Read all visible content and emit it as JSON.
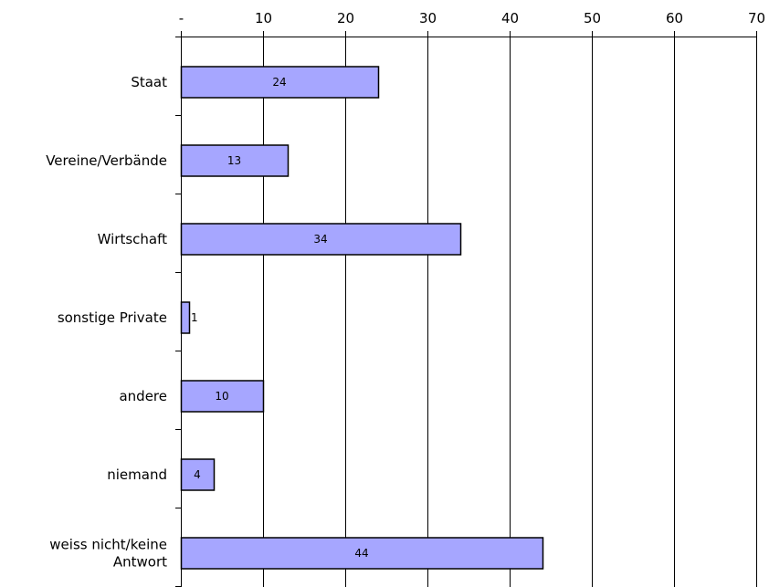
{
  "chart_data": {
    "type": "bar",
    "orientation": "horizontal",
    "categories": [
      [
        "Staat"
      ],
      [
        "Vereine/Verbände"
      ],
      [
        "Wirtschaft"
      ],
      [
        "sonstige Private"
      ],
      [
        "andere"
      ],
      [
        "niemand"
      ],
      [
        "weiss nicht/keine",
        "Antwort"
      ]
    ],
    "values": [
      24,
      13,
      34,
      1,
      10,
      4,
      44
    ],
    "data_labels": [
      "24",
      "13",
      "34",
      "1",
      "10",
      "4",
      "44"
    ],
    "x_ticks": [
      0,
      10,
      20,
      30,
      40,
      50,
      60,
      70
    ],
    "x_tick_labels": [
      "-",
      "10",
      "20",
      "30",
      "40",
      "50",
      "60",
      "70"
    ],
    "xlim": [
      0,
      70
    ],
    "axis_position": "top",
    "grid": true,
    "bar_color": "#a6a6ff",
    "bar_stroke": "#000000"
  }
}
